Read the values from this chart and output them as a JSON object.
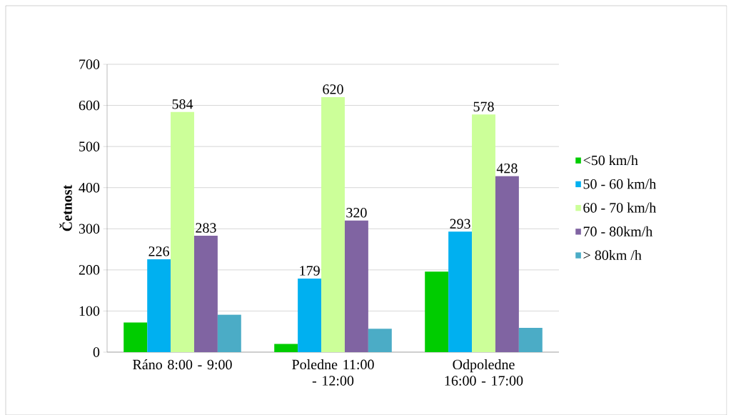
{
  "chart_data": {
    "type": "bar",
    "ylabel": "Četnost",
    "categories": [
      "Ráno 8:00 - 9:00",
      "Poledne 11:00 - 12:00",
      "Odpoledne 16:00 - 17:00"
    ],
    "series": [
      {
        "name": "<50 km/h",
        "color": "#00cc00",
        "values": [
          72,
          20,
          196
        ]
      },
      {
        "name": "50 - 60 km/h",
        "color": "#00b0f0",
        "values": [
          226,
          179,
          293
        ],
        "value_labels": [
          "226",
          "179",
          "293"
        ]
      },
      {
        "name": "60 - 70 km/h",
        "color": "#ccff99",
        "values": [
          584,
          620,
          578
        ],
        "value_labels": [
          "584",
          "620",
          "578"
        ]
      },
      {
        "name": "70 - 80km/h",
        "color": "#8064a2",
        "values": [
          283,
          320,
          428
        ],
        "value_labels": [
          "283",
          "320",
          "428"
        ]
      },
      {
        "name": "> 80km /h",
        "color": "#4bacc6",
        "values": [
          91,
          57,
          59
        ]
      }
    ],
    "ylim": [
      0,
      700
    ],
    "yticks": [
      0,
      100,
      200,
      300,
      400,
      500,
      600,
      700
    ],
    "grid": "y",
    "legend": "right"
  }
}
